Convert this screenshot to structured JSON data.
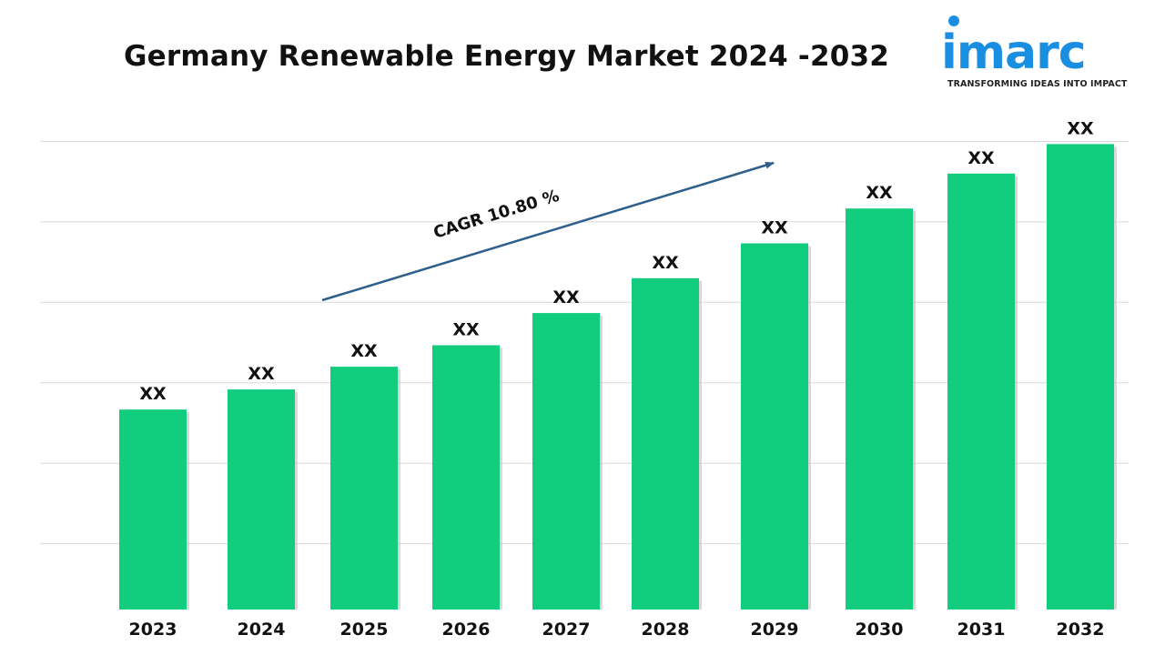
{
  "title": "Germany Renewable Energy Market 2024 -2032",
  "logo": {
    "word": "imarc",
    "tagline": "TRANSFORMING IDEAS INTO IMPACT",
    "color": "#1a8ee0"
  },
  "chart_data": {
    "type": "bar",
    "categories": [
      "2023",
      "2024",
      "2025",
      "2026",
      "2027",
      "2028",
      "2029",
      "2030",
      "2031",
      "2032"
    ],
    "values": [
      1.0,
      1.15,
      1.32,
      1.48,
      1.72,
      1.98,
      2.24,
      2.5,
      2.76,
      2.98
    ],
    "data_labels": [
      "XX",
      "XX",
      "XX",
      "XX",
      "XX",
      "XX",
      "XX",
      "XX",
      "XX",
      "XX"
    ],
    "ylim": [
      -0.6,
      3.2
    ],
    "grid": true,
    "y_axis_visible": false,
    "bar_color": "#12cd7d",
    "annotation": {
      "text": "CAGR 10.80 %",
      "arrow_color": "#2e5f8c"
    }
  }
}
